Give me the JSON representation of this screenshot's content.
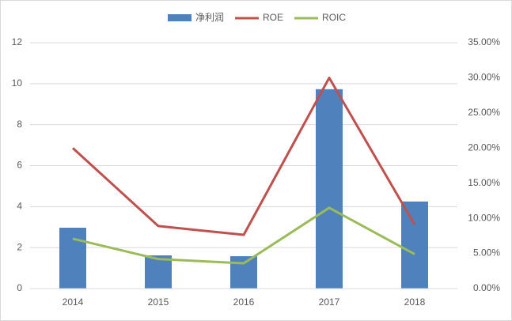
{
  "chart_data": {
    "type": "bar",
    "categories": [
      "2014",
      "2015",
      "2016",
      "2017",
      "2018"
    ],
    "series": [
      {
        "name": "净利润",
        "type": "bar",
        "color": "#4f81bd",
        "values": [
          2.97,
          1.62,
          1.58,
          9.73,
          4.25
        ]
      },
      {
        "name": "ROE",
        "type": "line",
        "axis": "y2",
        "color": "#c0504d",
        "values": [
          20.0,
          8.9,
          7.65,
          30.0,
          9.1
        ]
      },
      {
        "name": "ROIC",
        "type": "line",
        "axis": "y2",
        "color": "#9bbb59",
        "values": [
          7.1,
          4.2,
          3.6,
          11.5,
          4.9
        ]
      }
    ],
    "ylim": [
      0,
      12
    ],
    "yticks": [
      0,
      2,
      4,
      6,
      8,
      10,
      12
    ],
    "y2lim": [
      0,
      35
    ],
    "y2ticks": [
      {
        "value": 0,
        "label": "0.00%"
      },
      {
        "value": 5,
        "label": "5.00%"
      },
      {
        "value": 10,
        "label": "10.00%"
      },
      {
        "value": 15,
        "label": "15.00%"
      },
      {
        "value": 20,
        "label": "20.00%"
      },
      {
        "value": 25,
        "label": "25.00%"
      },
      {
        "value": 30,
        "label": "30.00%"
      },
      {
        "value": 35,
        "label": "35.00%"
      }
    ],
    "grid": true,
    "legend": "top"
  }
}
